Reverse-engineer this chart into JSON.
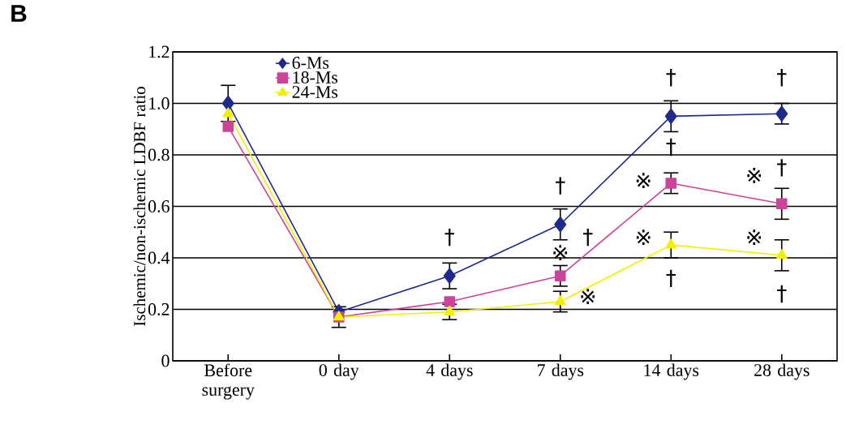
{
  "chart_data": {
    "type": "line",
    "ylabel": "Ischemic/non-ischemic LDBF ratio",
    "categories": [
      "Before surgery",
      "0 day",
      "4 days",
      "7 days",
      "14 days",
      "28 days"
    ],
    "series": [
      {
        "name": "6-Ms",
        "color": "#1f2a8c",
        "marker": "diamond",
        "values": [
          1.0,
          0.19,
          0.33,
          0.53,
          0.95,
          0.96
        ],
        "errors": [
          0.07,
          null,
          0.05,
          0.06,
          0.06,
          0.04
        ]
      },
      {
        "name": "18-Ms",
        "color": "#cc4499",
        "marker": "square",
        "values": [
          0.91,
          0.17,
          0.23,
          0.33,
          0.69,
          0.61
        ],
        "errors": [
          null,
          0.04,
          null,
          0.04,
          0.04,
          0.06
        ]
      },
      {
        "name": "24-Ms",
        "color": "#f0f000",
        "marker": "triangle",
        "values": [
          0.96,
          0.17,
          0.19,
          0.23,
          0.45,
          0.41
        ],
        "errors": [
          null,
          null,
          0.03,
          0.04,
          0.05,
          0.06
        ]
      }
    ],
    "ylim": [
      0,
      1.2
    ],
    "yticks": [
      0,
      0.2,
      0.4,
      0.6,
      0.8,
      {
        "value": 1.0,
        "label": "1.0"
      },
      1.2
    ],
    "grid": "y",
    "legend": "top left",
    "annotations": [
      "B",
      "†",
      "†",
      "†",
      "※",
      "※",
      "†",
      "†",
      "※",
      "※",
      "†",
      "†",
      "†",
      "※",
      "※",
      "†"
    ]
  }
}
